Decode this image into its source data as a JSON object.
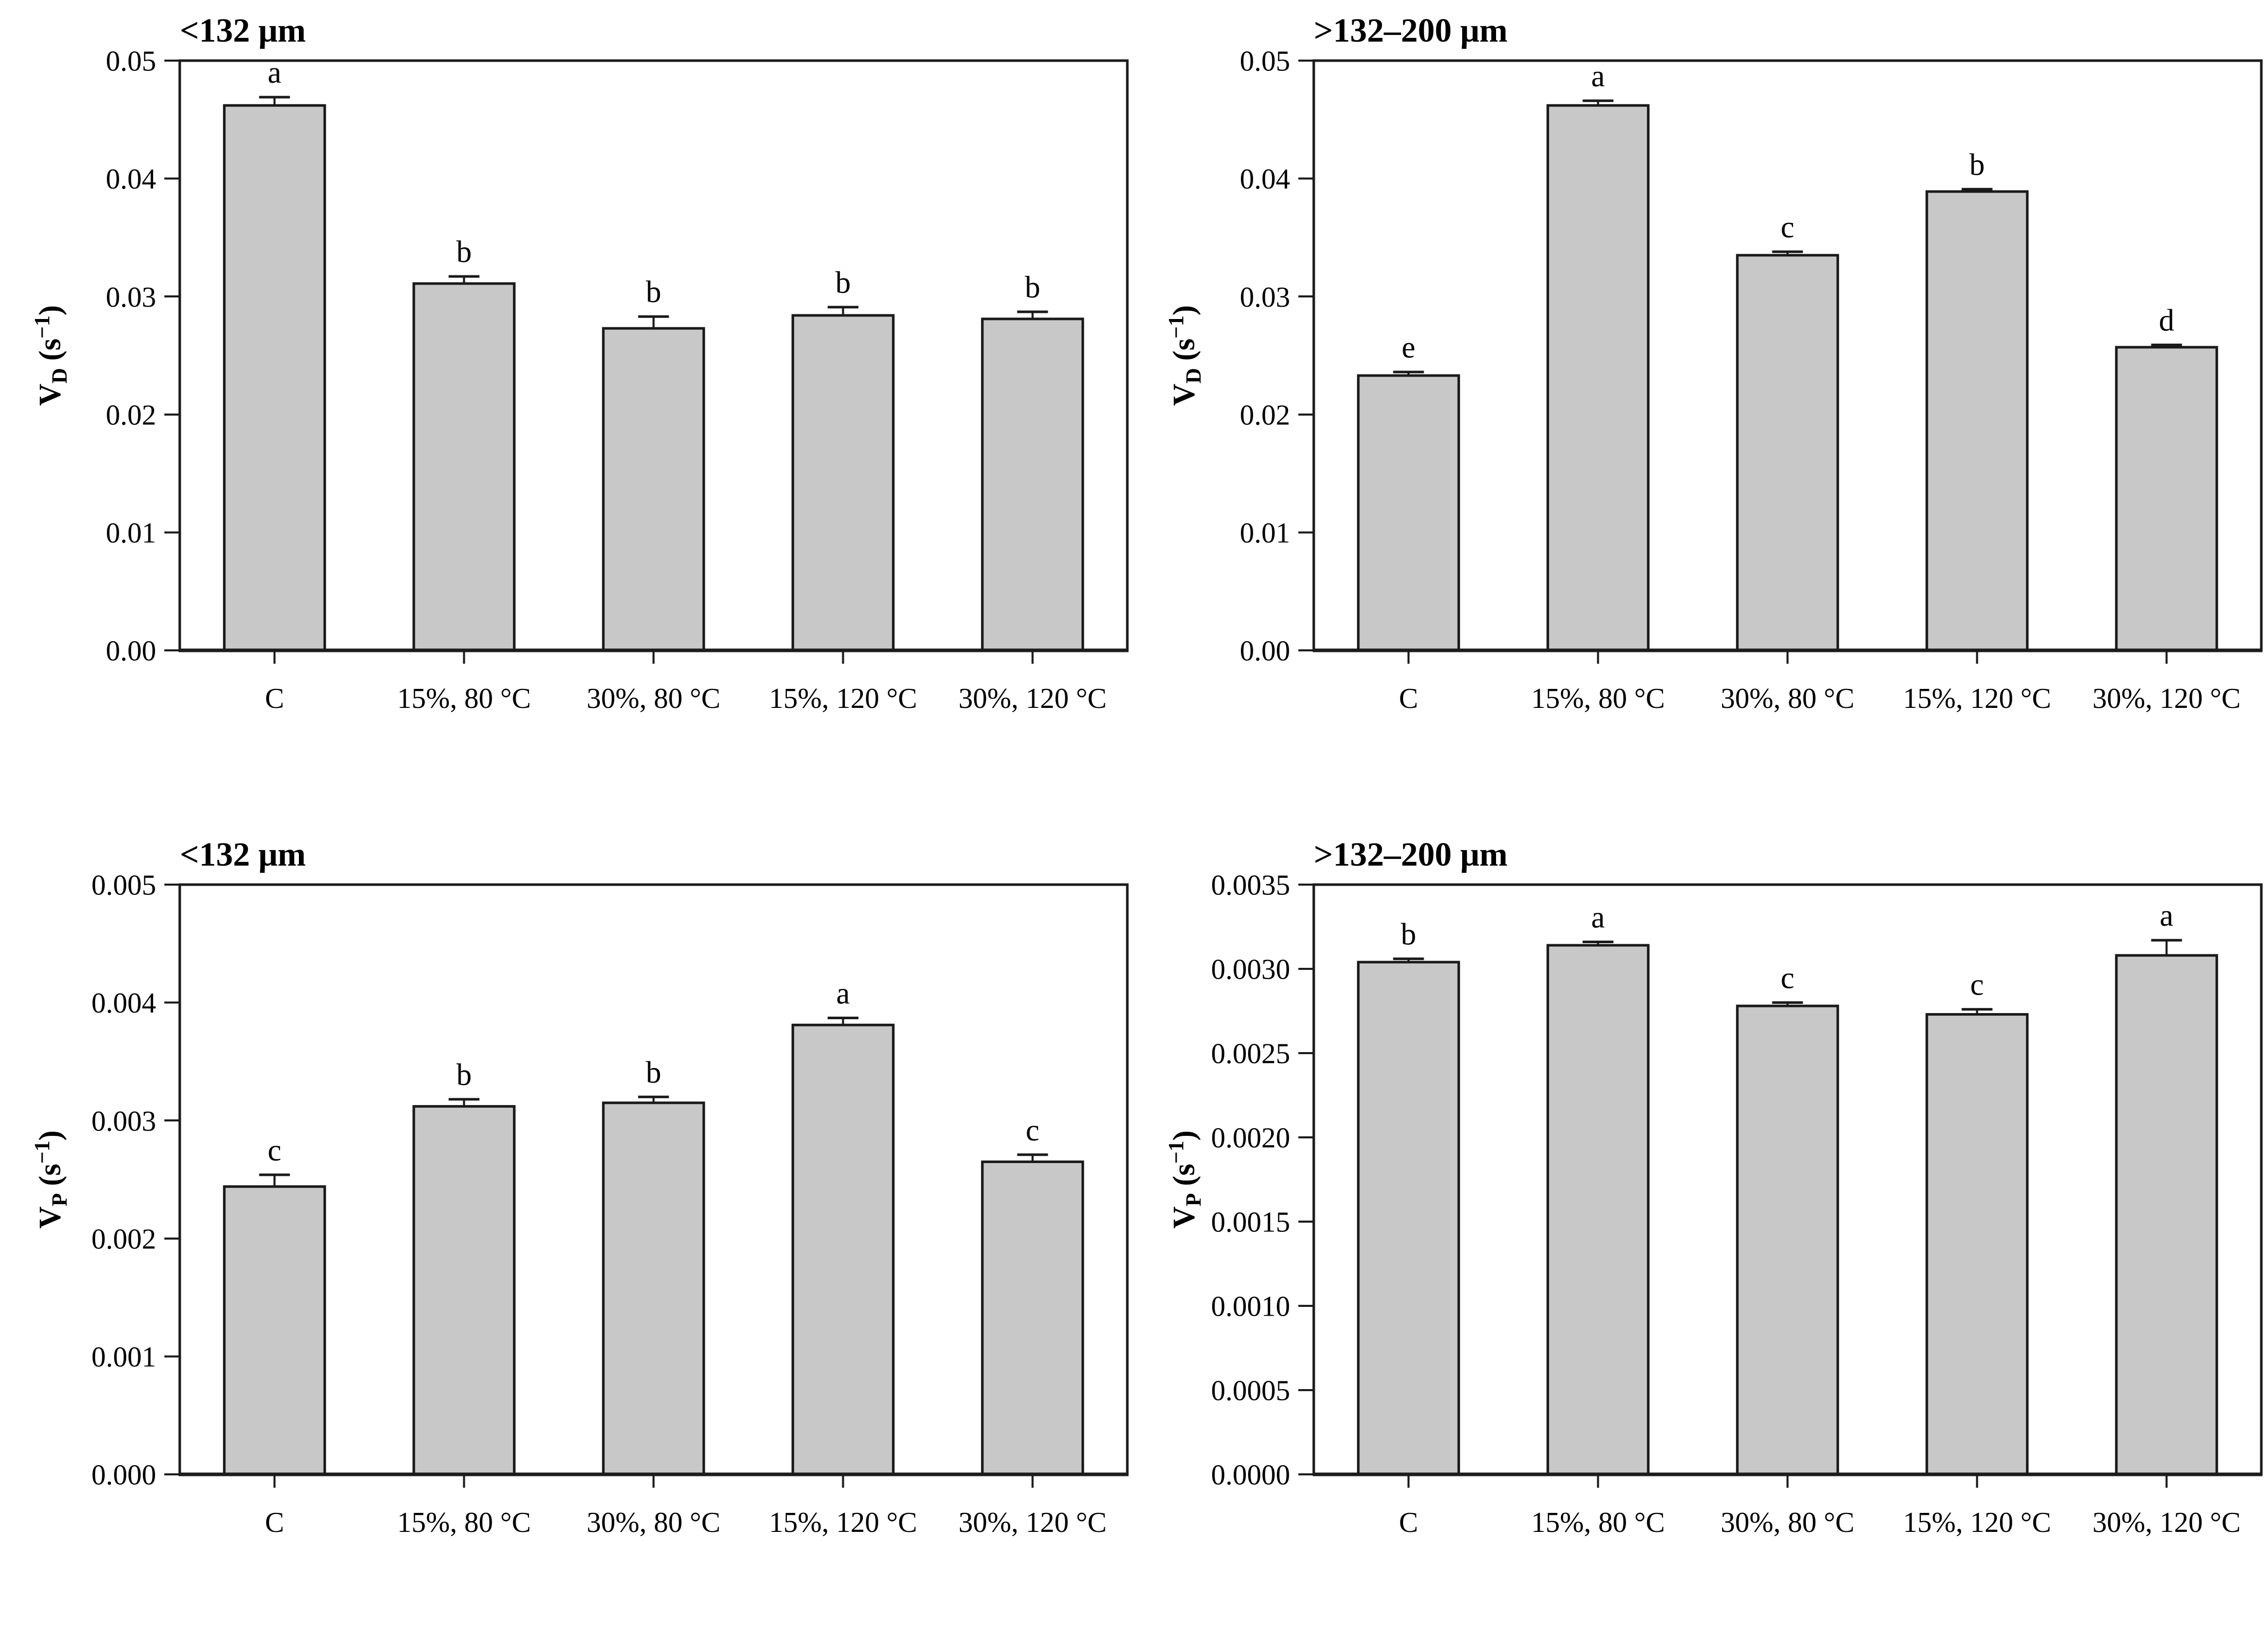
{
  "style": {
    "bar_fill": "#c8c8c8",
    "bar_stroke": "#1a1a1a",
    "axis_color": "#1c1c1c",
    "text_color": "#000000",
    "background": "#ffffff"
  },
  "chart_data": [
    {
      "type": "bar",
      "title": "<132 μm",
      "ylabel": {
        "symbol": "V",
        "subscript": "D",
        "unit_pre": "(s",
        "unit_sup": "−1",
        "unit_post": ")"
      },
      "categories": [
        "C",
        "15%, 80 °C",
        "30%, 80 °C",
        "15%, 120 °C",
        "30%, 120 °C"
      ],
      "values": [
        0.0462,
        0.0311,
        0.0273,
        0.0284,
        0.0281
      ],
      "errors": [
        0.0007,
        0.0006,
        0.001,
        0.0007,
        0.0006
      ],
      "letters": [
        "a",
        "b",
        "b",
        "b",
        "b"
      ],
      "ylim": [
        0,
        0.05
      ],
      "ytick_values": [
        0.0,
        0.01,
        0.02,
        0.03,
        0.04,
        0.05
      ],
      "ytick_labels": [
        "0.00",
        "0.01",
        "0.02",
        "0.03",
        "0.04",
        "0.05"
      ],
      "grid": false,
      "legend": "none"
    },
    {
      "type": "bar",
      "title": ">132–200 μm",
      "ylabel": {
        "symbol": "V",
        "subscript": "D",
        "unit_pre": "(s",
        "unit_sup": "−1",
        "unit_post": ")"
      },
      "categories": [
        "C",
        "15%, 80 °C",
        "30%, 80 °C",
        "15%, 120 °C",
        "30%, 120 °C"
      ],
      "values": [
        0.0233,
        0.0462,
        0.0335,
        0.0389,
        0.0257
      ],
      "errors": [
        0.0003,
        0.0004,
        0.0003,
        0.0002,
        0.0002
      ],
      "letters": [
        "e",
        "a",
        "c",
        "b",
        "d"
      ],
      "ylim": [
        0,
        0.05
      ],
      "ytick_values": [
        0.0,
        0.01,
        0.02,
        0.03,
        0.04,
        0.05
      ],
      "ytick_labels": [
        "0.00",
        "0.01",
        "0.02",
        "0.03",
        "0.04",
        "0.05"
      ],
      "grid": false,
      "legend": "none"
    },
    {
      "type": "bar",
      "title": "<132 μm",
      "ylabel": {
        "symbol": "V",
        "subscript": "P",
        "unit_pre": "(s",
        "unit_sup": "−1",
        "unit_post": ")"
      },
      "categories": [
        "C",
        "15%, 80 °C",
        "30%, 80 °C",
        "15%, 120 °C",
        "30%, 120 °C"
      ],
      "values": [
        0.00244,
        0.00312,
        0.00315,
        0.00381,
        0.00265
      ],
      "errors": [
        0.0001,
        6e-05,
        5e-05,
        6e-05,
        6e-05
      ],
      "letters": [
        "c",
        "b",
        "b",
        "a",
        "c"
      ],
      "ylim": [
        0,
        0.005
      ],
      "ytick_values": [
        0.0,
        0.001,
        0.002,
        0.003,
        0.004,
        0.005
      ],
      "ytick_labels": [
        "0.000",
        "0.001",
        "0.002",
        "0.003",
        "0.004",
        "0.005"
      ],
      "grid": false,
      "legend": "none"
    },
    {
      "type": "bar",
      "title": ">132–200 μm",
      "ylabel": {
        "symbol": "V",
        "subscript": "P",
        "unit_pre": "(s",
        "unit_sup": "−1",
        "unit_post": ")"
      },
      "categories": [
        "C",
        "15%, 80 °C",
        "30%, 80 °C",
        "15%, 120 °C",
        "30%, 120 °C"
      ],
      "values": [
        0.00304,
        0.00314,
        0.00278,
        0.00273,
        0.00308
      ],
      "errors": [
        2e-05,
        2e-05,
        2e-05,
        3e-05,
        9e-05
      ],
      "letters": [
        "b",
        "a",
        "c",
        "c",
        "a"
      ],
      "ylim": [
        0,
        0.0035
      ],
      "ytick_values": [
        0.0,
        0.0005,
        0.001,
        0.0015,
        0.002,
        0.0025,
        0.003,
        0.0035
      ],
      "ytick_labels": [
        "0.0000",
        "0.0005",
        "0.0010",
        "0.0015",
        "0.0020",
        "0.0025",
        "0.0030",
        "0.0035"
      ],
      "grid": false,
      "legend": "none"
    }
  ]
}
